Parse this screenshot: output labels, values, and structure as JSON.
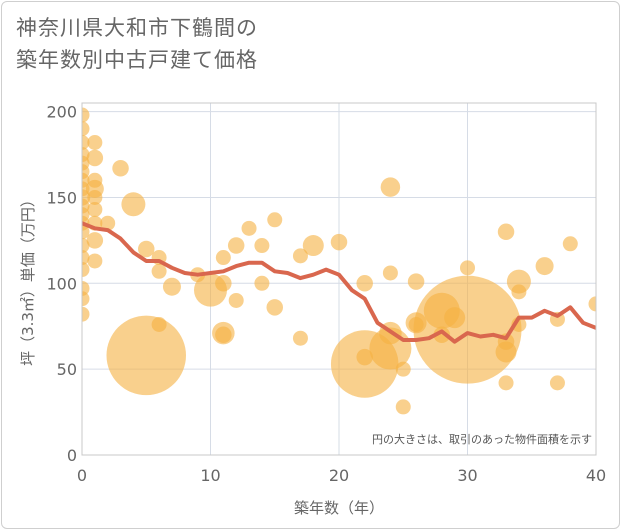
{
  "title_lines": [
    "神奈川県大和市下鶴間の",
    "築年数別中古戸建て価格"
  ],
  "note": "円の大きさは、取引のあった物件面積を示す",
  "colors": {
    "bubble": "#f5b041",
    "line": "#d9674e",
    "grid": "#d6dce6",
    "plot_border": "#c8c8c8"
  },
  "chart_data": {
    "type": "scatter",
    "title": "神奈川県大和市下鶴間の築年数別中古戸建て価格",
    "xlabel": "築年数（年）",
    "ylabel": "坪（3.3㎡）単価（万円）",
    "xlim": [
      0,
      40
    ],
    "ylim": [
      0,
      205
    ],
    "xticks": [
      0,
      10,
      20,
      30,
      40
    ],
    "yticks": [
      0,
      50,
      100,
      150,
      200
    ],
    "grid": true,
    "series": [
      {
        "kind": "bubble",
        "points": [
          {
            "x": 0,
            "y": 198,
            "s": 1
          },
          {
            "x": 0,
            "y": 190,
            "s": 1
          },
          {
            "x": 0,
            "y": 182,
            "s": 1
          },
          {
            "x": 0,
            "y": 175,
            "s": 1
          },
          {
            "x": 0,
            "y": 170,
            "s": 1
          },
          {
            "x": 0,
            "y": 165,
            "s": 1
          },
          {
            "x": 0,
            "y": 160,
            "s": 1
          },
          {
            "x": 0,
            "y": 155,
            "s": 1
          },
          {
            "x": 0,
            "y": 150,
            "s": 1.1
          },
          {
            "x": 0,
            "y": 145,
            "s": 1
          },
          {
            "x": 0,
            "y": 140,
            "s": 1
          },
          {
            "x": 0,
            "y": 135,
            "s": 1
          },
          {
            "x": 0,
            "y": 130,
            "s": 1
          },
          {
            "x": 0,
            "y": 122,
            "s": 1
          },
          {
            "x": 0,
            "y": 115,
            "s": 1
          },
          {
            "x": 0,
            "y": 108,
            "s": 1
          },
          {
            "x": 0,
            "y": 97,
            "s": 1
          },
          {
            "x": 0,
            "y": 91,
            "s": 1
          },
          {
            "x": 0,
            "y": 82,
            "s": 1
          },
          {
            "x": 1,
            "y": 182,
            "s": 1
          },
          {
            "x": 1,
            "y": 173,
            "s": 1.1
          },
          {
            "x": 1,
            "y": 160,
            "s": 1
          },
          {
            "x": 1,
            "y": 155,
            "s": 1.2
          },
          {
            "x": 1,
            "y": 150,
            "s": 1
          },
          {
            "x": 1,
            "y": 143,
            "s": 1
          },
          {
            "x": 1,
            "y": 135,
            "s": 1
          },
          {
            "x": 1,
            "y": 125,
            "s": 1.1
          },
          {
            "x": 1,
            "y": 113,
            "s": 1
          },
          {
            "x": 2,
            "y": 135,
            "s": 1
          },
          {
            "x": 3,
            "y": 167,
            "s": 1.1
          },
          {
            "x": 4,
            "y": 146,
            "s": 1.6
          },
          {
            "x": 5,
            "y": 120,
            "s": 1.1
          },
          {
            "x": 5,
            "y": 58,
            "s": 5.3
          },
          {
            "x": 6,
            "y": 115,
            "s": 1
          },
          {
            "x": 6,
            "y": 107,
            "s": 1
          },
          {
            "x": 6,
            "y": 76,
            "s": 1
          },
          {
            "x": 7,
            "y": 98,
            "s": 1.2
          },
          {
            "x": 9,
            "y": 105,
            "s": 1
          },
          {
            "x": 10,
            "y": 96,
            "s": 2.2
          },
          {
            "x": 11,
            "y": 115,
            "s": 1
          },
          {
            "x": 11,
            "y": 100,
            "s": 1.1
          },
          {
            "x": 11,
            "y": 71,
            "s": 1.5
          },
          {
            "x": 11,
            "y": 70,
            "s": 1.1
          },
          {
            "x": 12,
            "y": 122,
            "s": 1.1
          },
          {
            "x": 12,
            "y": 90,
            "s": 1
          },
          {
            "x": 13,
            "y": 132,
            "s": 1
          },
          {
            "x": 14,
            "y": 122,
            "s": 1
          },
          {
            "x": 14,
            "y": 100,
            "s": 1
          },
          {
            "x": 15,
            "y": 137,
            "s": 1
          },
          {
            "x": 15,
            "y": 86,
            "s": 1.1
          },
          {
            "x": 17,
            "y": 116,
            "s": 1
          },
          {
            "x": 17,
            "y": 68,
            "s": 1
          },
          {
            "x": 18,
            "y": 122,
            "s": 1.4
          },
          {
            "x": 20,
            "y": 124,
            "s": 1.1
          },
          {
            "x": 22,
            "y": 100,
            "s": 1.1
          },
          {
            "x": 22,
            "y": 57,
            "s": 1.1
          },
          {
            "x": 22,
            "y": 53,
            "s": 4.5
          },
          {
            "x": 24,
            "y": 156,
            "s": 1.3
          },
          {
            "x": 24,
            "y": 106,
            "s": 1
          },
          {
            "x": 24,
            "y": 71,
            "s": 1.5
          },
          {
            "x": 24,
            "y": 62,
            "s": 2.8
          },
          {
            "x": 25,
            "y": 50,
            "s": 1
          },
          {
            "x": 25,
            "y": 28,
            "s": 1
          },
          {
            "x": 26,
            "y": 101,
            "s": 1.1
          },
          {
            "x": 26,
            "y": 77,
            "s": 1.4
          },
          {
            "x": 26,
            "y": 76,
            "s": 1
          },
          {
            "x": 28,
            "y": 84,
            "s": 2.4
          },
          {
            "x": 28,
            "y": 70,
            "s": 1.1
          },
          {
            "x": 29,
            "y": 80,
            "s": 1.4
          },
          {
            "x": 30,
            "y": 109,
            "s": 1
          },
          {
            "x": 30,
            "y": 73,
            "s": 7.2
          },
          {
            "x": 33,
            "y": 130,
            "s": 1.1
          },
          {
            "x": 33,
            "y": 66,
            "s": 1.1
          },
          {
            "x": 33,
            "y": 60,
            "s": 1.4
          },
          {
            "x": 33,
            "y": 42,
            "s": 1
          },
          {
            "x": 34,
            "y": 101,
            "s": 1.6
          },
          {
            "x": 34,
            "y": 95,
            "s": 1
          },
          {
            "x": 34,
            "y": 76,
            "s": 1
          },
          {
            "x": 36,
            "y": 110,
            "s": 1.2
          },
          {
            "x": 37,
            "y": 79,
            "s": 1
          },
          {
            "x": 37,
            "y": 42,
            "s": 1
          },
          {
            "x": 38,
            "y": 123,
            "s": 1
          },
          {
            "x": 40,
            "y": 88,
            "s": 1
          }
        ]
      },
      {
        "kind": "line",
        "x": [
          0,
          1,
          2,
          3,
          4,
          5,
          6,
          7,
          8,
          9,
          10,
          11,
          12,
          13,
          14,
          15,
          16,
          17,
          18,
          19,
          20,
          21,
          22,
          23,
          24,
          25,
          26,
          27,
          28,
          29,
          30,
          31,
          32,
          33,
          34,
          35,
          36,
          37,
          38,
          39,
          40
        ],
        "y": [
          135,
          132,
          131,
          126,
          118,
          113,
          113,
          109,
          106,
          105,
          106,
          107,
          110,
          112,
          112,
          107,
          106,
          103,
          105,
          108,
          105,
          96,
          91,
          77,
          72,
          67,
          67,
          68,
          72,
          66,
          71,
          69,
          70,
          68,
          80,
          80,
          84,
          81,
          86,
          77,
          74
        ]
      }
    ]
  }
}
